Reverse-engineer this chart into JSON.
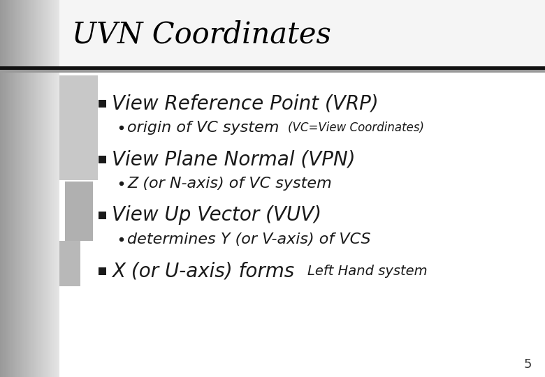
{
  "title": "UVN Coordinates",
  "bg_color": "#ffffff",
  "title_color": "#000000",
  "title_fontsize": 30,
  "slide_number": "5",
  "bullet1_main": "View Reference Point (VRP)",
  "bullet1_sub1": "origin of VC system",
  "bullet1_sub1_note": "(VC=View Coordinates)",
  "bullet2_main": "View Plane Normal (VPN)",
  "bullet2_sub1": "Z (or N-axis) of VC system",
  "bullet3_main": "View Up Vector (VUV)",
  "bullet3_sub1": "determines Y (or V-axis) of VCS",
  "bullet4_main": "X (or U-axis) forms",
  "bullet4_note": "Left Hand system",
  "main_fontsize": 20,
  "sub_fontsize": 16,
  "note_fontsize": 12,
  "text_color": "#1a1a1a"
}
